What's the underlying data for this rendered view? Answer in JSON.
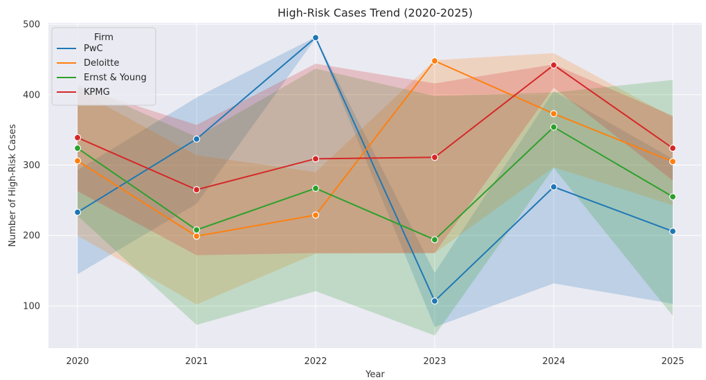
{
  "chart_data": {
    "type": "line",
    "title": "High-Risk Cases Trend (2020-2025)",
    "xlabel": "Year",
    "ylabel": "Number of High-Risk Cases",
    "x": [
      "2020",
      "2021",
      "2022",
      "2023",
      "2024",
      "2025"
    ],
    "yticks": [
      100,
      200,
      300,
      400,
      500
    ],
    "ylim": [
      40,
      502
    ],
    "grid": true,
    "legend": {
      "title": "Firm",
      "placement": "top-left"
    },
    "series": [
      {
        "name": "PwC",
        "color": "#1f77b4",
        "values": [
          233,
          337,
          481,
          107,
          269,
          206
        ],
        "band_low": [
          145,
          245,
          480,
          70,
          132,
          103
        ],
        "band_high": [
          293,
          396,
          482,
          147,
          405,
          309
        ]
      },
      {
        "name": "Deloitte",
        "color": "#ff7f0e",
        "values": [
          306,
          199,
          229,
          448,
          373,
          305
        ],
        "band_low": [
          200,
          102,
          174,
          175,
          297,
          243
        ],
        "band_high": [
          406,
          314,
          290,
          449,
          459,
          368
        ]
      },
      {
        "name": "Ernst & Young",
        "color": "#2ca02c",
        "values": [
          324,
          208,
          267,
          194,
          354,
          255
        ],
        "band_low": [
          228,
          73,
          121,
          58,
          296,
          86
        ],
        "band_high": [
          415,
          340,
          437,
          398,
          403,
          421
        ]
      },
      {
        "name": "KPMG",
        "color": "#d62728",
        "values": [
          339,
          265,
          309,
          311,
          442,
          324
        ],
        "band_low": [
          263,
          172,
          175,
          175,
          410,
          278
        ],
        "band_high": [
          411,
          357,
          444,
          416,
          443,
          370
        ]
      }
    ]
  }
}
